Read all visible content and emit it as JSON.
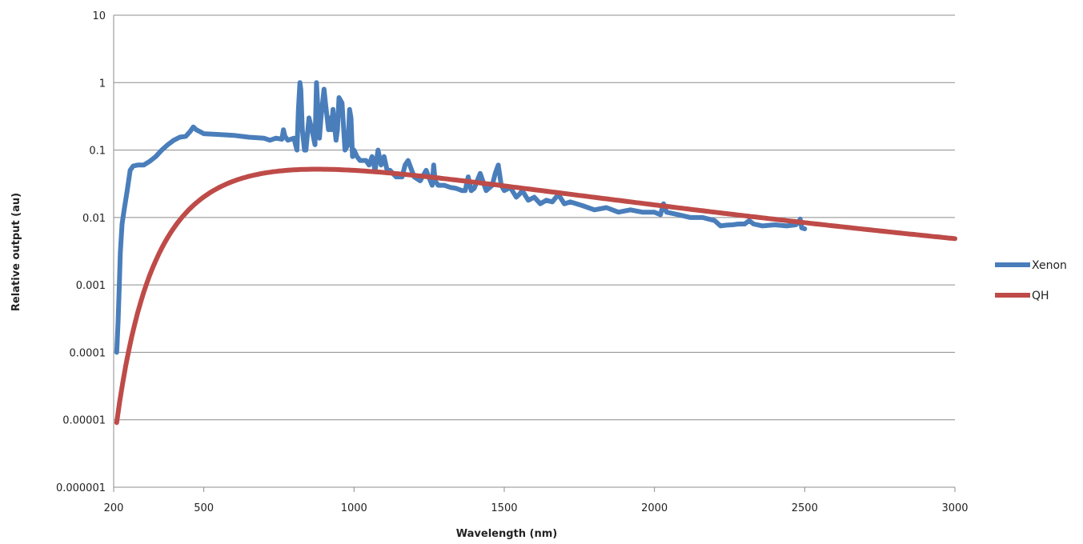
{
  "chart_data": {
    "type": "line",
    "xlabel": "Wavelength (nm)",
    "ylabel": "Relative output (au)",
    "xlim": [
      200,
      3000
    ],
    "ylim": [
      1e-06,
      10
    ],
    "y_scale": "log",
    "x_ticks": [
      200,
      500,
      1000,
      1500,
      2000,
      2500,
      3000
    ],
    "x_tick_labels": [
      "200",
      "500",
      "1000",
      "1500",
      "2000",
      "2500",
      "3000"
    ],
    "y_ticks": [
      1e-06,
      1e-05,
      0.0001,
      0.001,
      0.01,
      0.1,
      1,
      10
    ],
    "y_tick_labels": [
      "0.000001",
      "0.00001",
      "0.0001",
      "0.001",
      "0.01",
      "0.1",
      "1",
      "10"
    ],
    "grid": true,
    "legend_position": "right",
    "series": [
      {
        "name": "Xenon",
        "color": "#4a7ebb",
        "x": [
          210,
          212,
          215,
          218,
          222,
          228,
          235,
          245,
          255,
          265,
          280,
          300,
          320,
          340,
          360,
          380,
          400,
          420,
          440,
          455,
          465,
          475,
          500,
          550,
          600,
          650,
          700,
          720,
          740,
          760,
          765,
          770,
          780,
          800,
          810,
          815,
          820,
          823,
          828,
          835,
          840,
          850,
          860,
          870,
          875,
          880,
          885,
          890,
          900,
          905,
          915,
          920,
          925,
          930,
          940,
          945,
          950,
          960,
          970,
          980,
          985,
          990,
          995,
          1000,
          1010,
          1020,
          1040,
          1050,
          1060,
          1070,
          1080,
          1090,
          1100,
          1110,
          1120,
          1140,
          1160,
          1170,
          1180,
          1200,
          1220,
          1240,
          1260,
          1265,
          1270,
          1280,
          1300,
          1320,
          1340,
          1360,
          1370,
          1380,
          1390,
          1400,
          1420,
          1440,
          1460,
          1470,
          1480,
          1490,
          1500,
          1520,
          1540,
          1550,
          1560,
          1580,
          1600,
          1620,
          1640,
          1660,
          1680,
          1700,
          1720,
          1760,
          1800,
          1840,
          1880,
          1920,
          1960,
          2000,
          2020,
          2030,
          2040,
          2080,
          2120,
          2160,
          2200,
          2220,
          2240,
          2260,
          2280,
          2300,
          2315,
          2330,
          2360,
          2400,
          2440,
          2470,
          2480,
          2485,
          2490,
          2500
        ],
        "values": [
          0.0001,
          0.00015,
          0.0003,
          0.0008,
          0.003,
          0.008,
          0.013,
          0.025,
          0.05,
          0.058,
          0.06,
          0.06,
          0.068,
          0.08,
          0.1,
          0.12,
          0.14,
          0.155,
          0.16,
          0.19,
          0.22,
          0.2,
          0.175,
          0.17,
          0.165,
          0.155,
          0.15,
          0.14,
          0.15,
          0.145,
          0.2,
          0.16,
          0.14,
          0.15,
          0.1,
          0.4,
          1.0,
          0.8,
          0.2,
          0.1,
          0.1,
          0.3,
          0.2,
          0.12,
          1.0,
          0.4,
          0.15,
          0.3,
          0.8,
          0.5,
          0.2,
          0.3,
          0.2,
          0.4,
          0.14,
          0.2,
          0.6,
          0.5,
          0.1,
          0.12,
          0.4,
          0.3,
          0.08,
          0.1,
          0.08,
          0.07,
          0.07,
          0.06,
          0.08,
          0.05,
          0.1,
          0.06,
          0.08,
          0.05,
          0.05,
          0.04,
          0.04,
          0.06,
          0.07,
          0.04,
          0.035,
          0.05,
          0.03,
          0.06,
          0.035,
          0.03,
          0.03,
          0.028,
          0.027,
          0.025,
          0.025,
          0.04,
          0.025,
          0.027,
          0.045,
          0.025,
          0.03,
          0.045,
          0.06,
          0.03,
          0.025,
          0.028,
          0.02,
          0.022,
          0.025,
          0.018,
          0.02,
          0.016,
          0.018,
          0.017,
          0.022,
          0.016,
          0.017,
          0.015,
          0.013,
          0.014,
          0.012,
          0.013,
          0.012,
          0.012,
          0.011,
          0.016,
          0.012,
          0.011,
          0.01,
          0.01,
          0.009,
          0.0075,
          0.0077,
          0.0078,
          0.008,
          0.008,
          0.009,
          0.008,
          0.0075,
          0.0078,
          0.0075,
          0.0078,
          0.0085,
          0.0095,
          0.007,
          0.0068
        ]
      },
      {
        "name": "QH",
        "color": "#be4b48",
        "function": "planck",
        "temperature_K": 3300,
        "x_start": 210,
        "x_end": 3000,
        "x_step": 10
      }
    ]
  }
}
